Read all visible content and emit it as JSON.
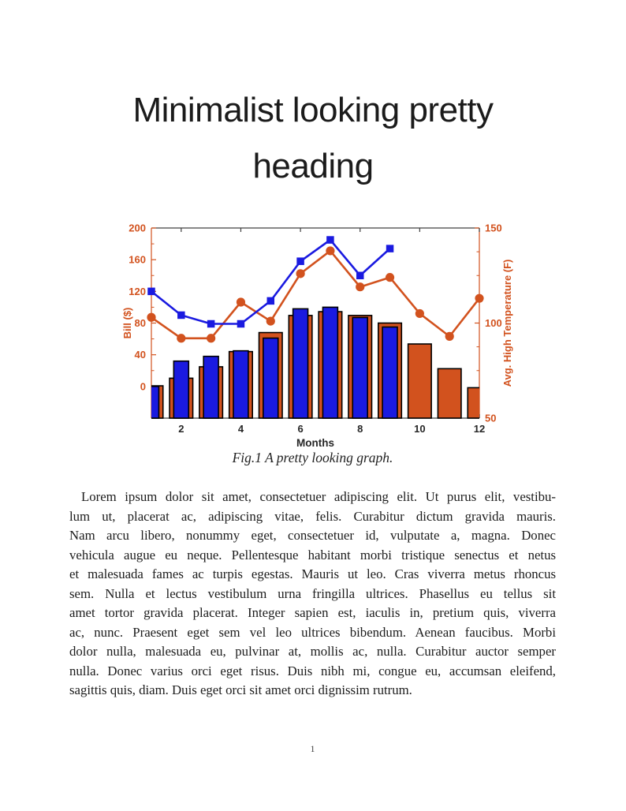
{
  "heading": {
    "line1": "Minimalist looking pretty",
    "line2": "heading"
  },
  "figure": {
    "caption": "Fig.1 A pretty looking graph."
  },
  "chart_data": {
    "type": "bar",
    "title": "",
    "xlabel": "Months",
    "x_ticks": [
      2,
      4,
      6,
      8,
      10,
      12
    ],
    "x_range": [
      1,
      12
    ],
    "grid": false,
    "legend": "none",
    "left_axis": {
      "label": "Bill ($)",
      "ticks": [
        0,
        40,
        80,
        120,
        160,
        200
      ],
      "minor_step": 20,
      "range": [
        -40,
        200
      ],
      "color": "#D2521E"
    },
    "right_axis": {
      "label": "Avg. High Temperature (F)",
      "ticks": [
        50,
        100,
        150
      ],
      "minor_step": 12.5,
      "range": [
        50,
        150
      ],
      "color": "#D2521E"
    },
    "series": [
      {
        "name": "temperature-bars",
        "type": "bar",
        "axis": "right",
        "color": "#D2521E",
        "edge_color": "#000000",
        "bar_width": 0.78,
        "months": [
          1,
          2,
          3,
          4,
          5,
          6,
          7,
          8,
          9,
          10,
          11,
          12
        ],
        "values": [
          67,
          71,
          77,
          85,
          95,
          104,
          106,
          104,
          100,
          89,
          76,
          66
        ]
      },
      {
        "name": "bill-bars",
        "type": "bar",
        "axis": "left",
        "color": "#1A1AE0",
        "edge_color": "#000000",
        "bar_width": 0.5,
        "months": [
          1,
          2,
          3,
          4,
          5,
          6,
          7,
          8,
          9
        ],
        "values": [
          0,
          32,
          38,
          45,
          61,
          98,
          100,
          87,
          75
        ]
      },
      {
        "name": "temperature-line",
        "type": "line",
        "axis": "right",
        "marker": "circle",
        "color": "#D2521E",
        "months": [
          1,
          2,
          3,
          4,
          5,
          6,
          7,
          8,
          9,
          10,
          11,
          12
        ],
        "values": [
          103,
          92,
          92,
          111,
          101,
          126,
          138,
          119,
          124,
          105,
          93,
          113
        ]
      },
      {
        "name": "bill-line",
        "type": "line",
        "axis": "left",
        "marker": "square",
        "color": "#1A1AE0",
        "months": [
          1,
          2,
          3,
          4,
          5,
          6,
          7,
          8,
          9
        ],
        "values": [
          120,
          90,
          79,
          79,
          108,
          158,
          185,
          140,
          174
        ]
      }
    ],
    "axis_dark_color": "#404040",
    "tick_label_color_x": "#262626"
  },
  "body": {
    "lines": [
      "Lorem ipsum dolor sit amet, consectetuer adipiscing elit.  Ut purus elit, vestibu-",
      "lum ut, placerat ac, adipiscing vitae, felis.  Curabitur dictum gravida mauris.",
      "Nam arcu libero, nonummy eget, consectetuer id, vulputate a, magna.  Donec",
      "vehicula augue eu neque. Pellentesque habitant morbi tristique senectus et netus",
      "et malesuada fames ac turpis egestas. Mauris ut leo. Cras viverra metus rhoncus",
      "sem.  Nulla et lectus vestibulum urna fringilla ultrices.  Phasellus eu tellus sit",
      "amet tortor gravida placerat. Integer sapien est, iaculis in, pretium quis, viverra",
      "ac, nunc.  Praesent eget sem vel leo ultrices bibendum.  Aenean faucibus.  Morbi",
      "dolor nulla, malesuada eu, pulvinar at, mollis ac, nulla.  Curabitur auctor semper",
      "nulla.  Donec varius orci eget risus.  Duis nibh mi, congue eu, accumsan eleifend,",
      "sagittis quis, diam.  Duis eget orci sit amet orci dignissim rutrum."
    ]
  },
  "page": {
    "number": "1"
  }
}
